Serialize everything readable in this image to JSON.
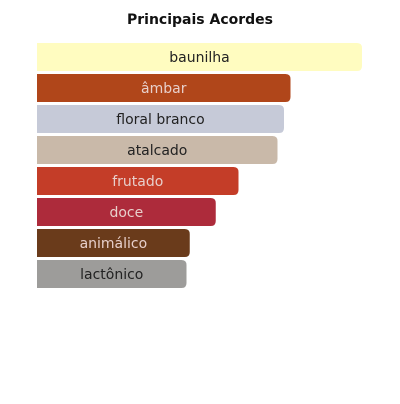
{
  "chart_data": {
    "type": "bar",
    "orientation": "horizontal",
    "title": "Principais Acordes",
    "categories": [
      "baunilha",
      "âmbar",
      "floral branco",
      "atalcado",
      "frutado",
      "doce",
      "animálico",
      "lactônico"
    ],
    "values": [
      100,
      78,
      76,
      74,
      62,
      55,
      47,
      46
    ],
    "colors": [
      "#fffcc0",
      "#b0461a",
      "#c6cad8",
      "#c9b9a9",
      "#c43d28",
      "#ad2b3b",
      "#6a3b1b",
      "#9d9c9a"
    ],
    "xlim": [
      0,
      100
    ]
  }
}
